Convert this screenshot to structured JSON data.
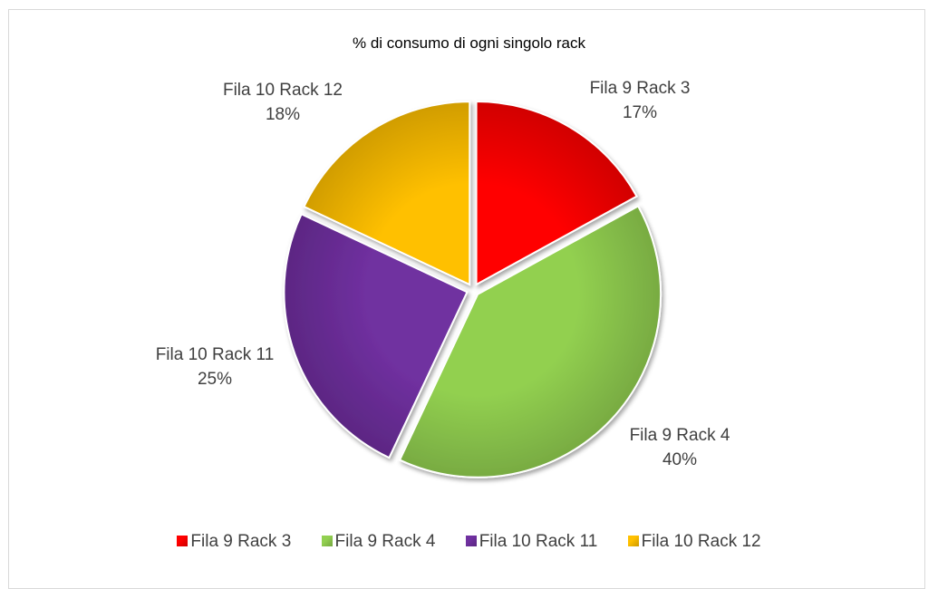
{
  "chart_data": {
    "type": "pie",
    "title": "% di consumo di ogni singolo rack",
    "categories": [
      "Fila 9 Rack 3",
      "Fila 9 Rack 4",
      "Fila 10 Rack 11",
      "Fila 10 Rack 12"
    ],
    "values": [
      17,
      40,
      25,
      18
    ],
    "value_labels": [
      "17%",
      "40%",
      "25%",
      "18%"
    ],
    "colors": [
      "#ff0000",
      "#92d050",
      "#7030a0",
      "#ffc000"
    ],
    "exploded": true,
    "legend_position": "bottom"
  }
}
